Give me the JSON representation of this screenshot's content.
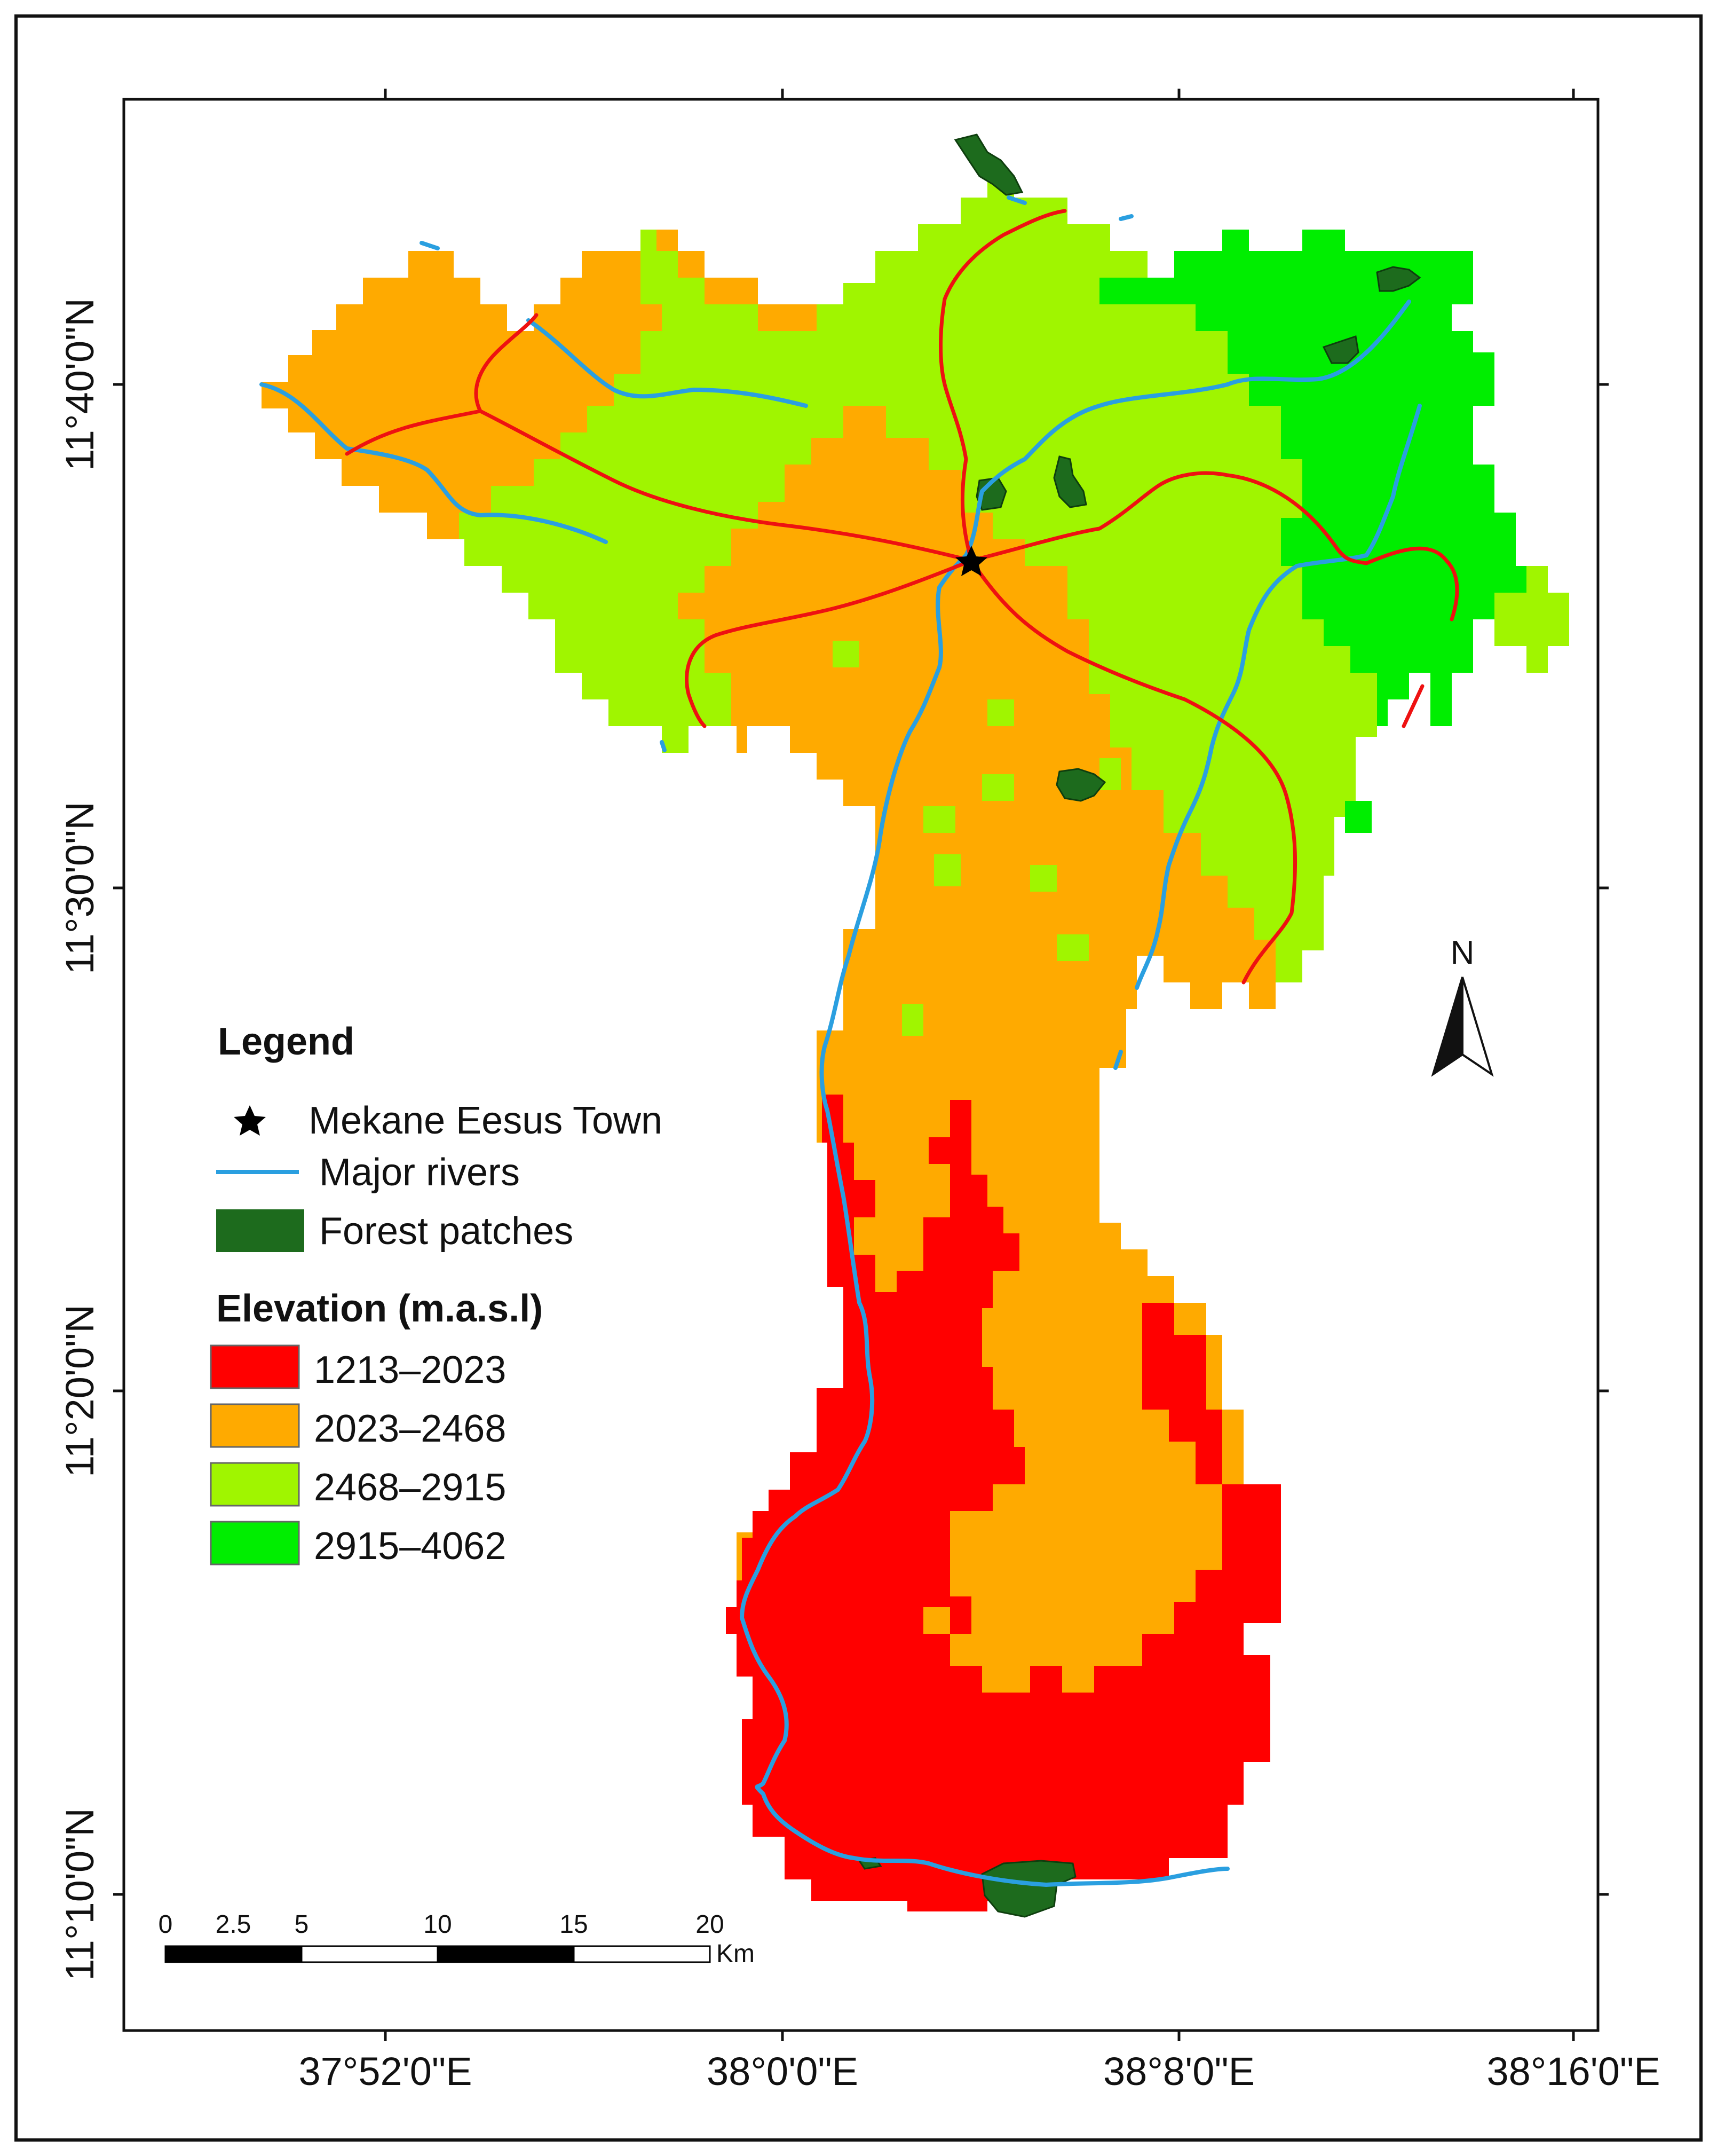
{
  "colors": {
    "elev_1": "#ff0000",
    "elev_2": "#ffaa00",
    "elev_3": "#a0f500",
    "elev_4": "#00ee00",
    "river": "#2a9fe0",
    "road": "#ee1111",
    "forest": "#1d6b1d"
  },
  "axes": {
    "x_ticks": [
      "37°52'0\"E",
      "38°0'0\"E",
      "38°8'0\"E",
      "38°16'0\"E"
    ],
    "y_ticks": [
      "11°40'0\"N",
      "11°30'0\"N",
      "11°20'0\"N",
      "11°10'0\"N"
    ]
  },
  "legend": {
    "title": "Legend",
    "items": [
      {
        "symbol": "star-icon",
        "label": "Mekane Eesus Town"
      },
      {
        "symbol": "river-line",
        "label": "Major rivers"
      },
      {
        "symbol": "forest-swatch",
        "label": "Forest patches"
      }
    ],
    "elevation_title": "Elevation (m.a.s.l)",
    "elevation_classes": [
      "1213–2023",
      "2023–2468",
      "2468–2915",
      "2915–4062"
    ]
  },
  "scale_bar": {
    "labels": [
      "0",
      "2.5",
      "5",
      "10",
      "15",
      "20"
    ],
    "unit": "Km"
  },
  "north_arrow": {
    "label": "N"
  }
}
